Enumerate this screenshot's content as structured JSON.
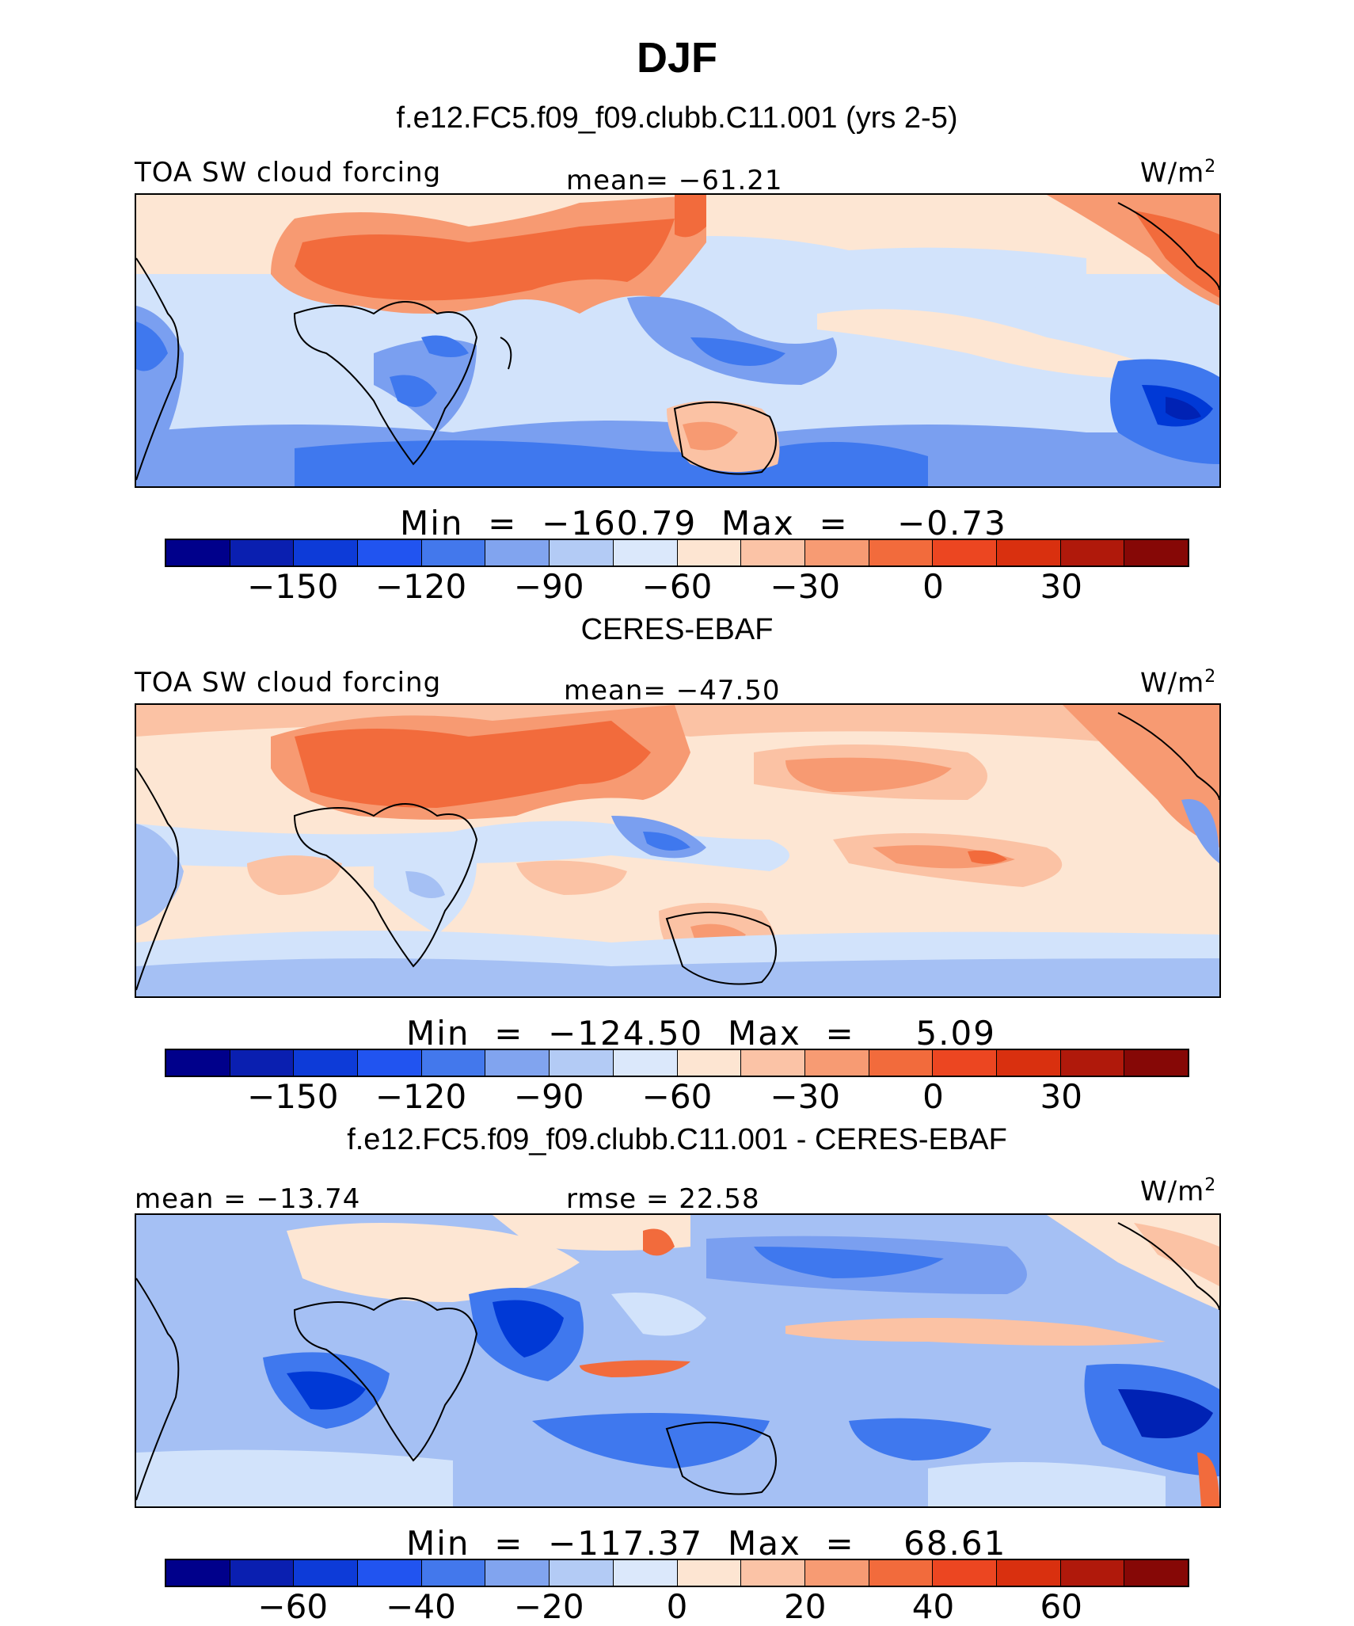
{
  "figure": {
    "title": "DJF"
  },
  "palette_14": [
    "#00008b",
    "#0022b4",
    "#0039d6",
    "#1a56f0",
    "#3f78ee",
    "#7a9ff0",
    "#a5c0f4",
    "#d2e3fb",
    "#fde6d3",
    "#fbc2a4",
    "#f79a72",
    "#f26b3c",
    "#f04a1c",
    "#dc3210",
    "#b01e0b",
    "#8a0a06"
  ],
  "panels": [
    {
      "subtitle": "f.e12.FC5.f09_f09.clubb.C11.001 (yrs 2-5)",
      "left_label": "TOA SW cloud forcing",
      "center_label": "mean= −61.21",
      "units": "W/m",
      "units_sup": "2",
      "minmax": "Min  =  −160.79  Max  =    −0.73",
      "ticks": [
        "−150",
        "−120",
        "−90",
        "−60",
        "−30",
        "0",
        "30"
      ],
      "colors": [
        "#00008b",
        "#0a1fb0",
        "#0d3bd8",
        "#2154f0",
        "#4378ec",
        "#81a4ef",
        "#b3cbf5",
        "#dbe8fb",
        "#fde5d2",
        "#fbc3a6",
        "#f79b73",
        "#f26b3c",
        "#ec4621",
        "#d9300f",
        "#b0190b",
        "#860806"
      ]
    },
    {
      "subtitle": "CERES-EBAF",
      "left_label": "TOA SW cloud forcing",
      "center_label": "mean= −47.50",
      "units": "W/m",
      "units_sup": "2",
      "minmax": "Min  =  −124.50  Max  =     5.09",
      "ticks": [
        "−150",
        "−120",
        "−90",
        "−60",
        "−30",
        "0",
        "30"
      ],
      "colors": [
        "#00008b",
        "#0a1fb0",
        "#0d3bd8",
        "#2154f0",
        "#4378ec",
        "#81a4ef",
        "#b3cbf5",
        "#dbe8fb",
        "#fde5d2",
        "#fbc3a6",
        "#f79b73",
        "#f26b3c",
        "#ec4621",
        "#d9300f",
        "#b0190b",
        "#860806"
      ]
    },
    {
      "subtitle": "f.e12.FC5.f09_f09.clubb.C11.001 - CERES-EBAF",
      "left_label": "mean  =  −13.74",
      "center_label": "rmse  =   22.58",
      "units": "W/m",
      "units_sup": "2",
      "minmax": "Min  =  −117.37  Max  =    68.61",
      "ticks": [
        "−60",
        "−40",
        "−20",
        "0",
        "20",
        "40",
        "60"
      ],
      "colors": [
        "#00008b",
        "#0a1fb0",
        "#0d3bd8",
        "#2154f0",
        "#4378ec",
        "#81a4ef",
        "#b3cbf5",
        "#dbe8fb",
        "#fde5d2",
        "#fbc3a6",
        "#f79b73",
        "#f26b3c",
        "#ec4621",
        "#d9300f",
        "#b0190b",
        "#860806"
      ]
    }
  ]
}
